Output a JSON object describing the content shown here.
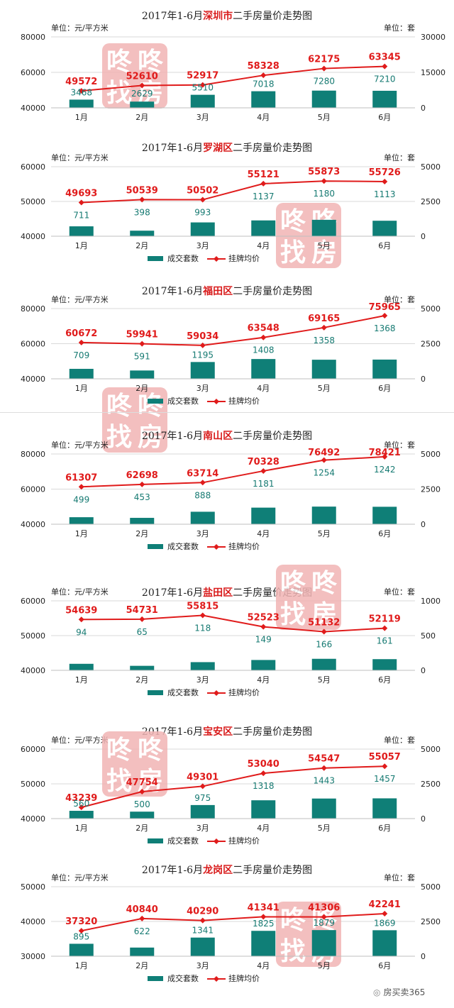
{
  "months": [
    "1月",
    "2月",
    "3月",
    "4月",
    "5月",
    "6月"
  ],
  "left_unit": "单位：元/平方米",
  "right_unit": "单位：套",
  "legend": {
    "bar": "成交套数",
    "line": "挂牌均价"
  },
  "colors": {
    "bar": "#0f7f77",
    "line": "#e01b1b",
    "title_accent": "#d91c1c",
    "watermark": "#f1b5b5",
    "text": "#222222",
    "volume_label": "#167a72"
  },
  "watermark_text": [
    "咚",
    "咚",
    "找",
    "房"
  ],
  "credit": "房买卖365",
  "chart_data": [
    {
      "type": "bar",
      "title_prefix": "2017年1-6月",
      "title_highlight": "深圳市",
      "title_suffix": "二手房量价走势图",
      "categories": [
        "1月",
        "2月",
        "3月",
        "4月",
        "5月",
        "6月"
      ],
      "series": [
        {
          "name": "成交套数",
          "axis": "right",
          "values": [
            3468,
            2629,
            5510,
            7018,
            7280,
            7210
          ]
        },
        {
          "name": "挂牌均价",
          "axis": "left",
          "values": [
            49572,
            52610,
            52917,
            58328,
            62175,
            63345
          ]
        }
      ],
      "left_axis": {
        "min": 40000,
        "max": 80000,
        "ticks": [
          40000,
          60000,
          80000
        ]
      },
      "right_axis": {
        "min": 0,
        "max": 30000,
        "ticks": [
          0,
          15000,
          30000
        ]
      },
      "legend_shown": false
    },
    {
      "type": "bar",
      "title_prefix": "2017年1-6月",
      "title_highlight": "罗湖区",
      "title_suffix": "二手房量价走势图",
      "categories": [
        "1月",
        "2月",
        "3月",
        "4月",
        "5月",
        "6月"
      ],
      "series": [
        {
          "name": "成交套数",
          "axis": "right",
          "values": [
            711,
            398,
            993,
            1137,
            1180,
            1113
          ]
        },
        {
          "name": "挂牌均价",
          "axis": "left",
          "values": [
            49693,
            50539,
            50502,
            55121,
            55873,
            55726
          ]
        }
      ],
      "left_axis": {
        "min": 40000,
        "max": 60000,
        "ticks": [
          40000,
          50000,
          60000
        ]
      },
      "right_axis": {
        "min": 0,
        "max": 5000,
        "ticks": [
          0,
          2500,
          5000
        ]
      },
      "legend_shown": true
    },
    {
      "type": "bar",
      "title_prefix": "2017年1-6月",
      "title_highlight": "福田区",
      "title_suffix": "二手房量价走势图",
      "categories": [
        "1月",
        "2月",
        "3月",
        "4月",
        "5月",
        "6月"
      ],
      "series": [
        {
          "name": "成交套数",
          "axis": "right",
          "values": [
            709,
            591,
            1195,
            1408,
            1358,
            1368
          ]
        },
        {
          "name": "挂牌均价",
          "axis": "left",
          "values": [
            60672,
            59941,
            59034,
            63548,
            69165,
            75965
          ]
        }
      ],
      "left_axis": {
        "min": 40000,
        "max": 80000,
        "ticks": [
          40000,
          60000,
          80000
        ]
      },
      "right_axis": {
        "min": 0,
        "max": 5000,
        "ticks": [
          0,
          2500,
          5000
        ]
      },
      "legend_shown": true
    },
    {
      "type": "bar",
      "title_prefix": "2017年1-6月",
      "title_highlight": "南山区",
      "title_suffix": "二手房量价走势图",
      "categories": [
        "1月",
        "2月",
        "3月",
        "4月",
        "5月",
        "6月"
      ],
      "series": [
        {
          "name": "成交套数",
          "axis": "right",
          "values": [
            499,
            453,
            888,
            1181,
            1254,
            1242
          ]
        },
        {
          "name": "挂牌均价",
          "axis": "left",
          "values": [
            61307,
            62698,
            63714,
            70328,
            76492,
            78421
          ]
        }
      ],
      "left_axis": {
        "min": 40000,
        "max": 80000,
        "ticks": [
          40000,
          60000,
          80000
        ]
      },
      "right_axis": {
        "min": 0,
        "max": 5000,
        "ticks": [
          0,
          2500,
          5000
        ]
      },
      "legend_shown": true
    },
    {
      "type": "bar",
      "title_prefix": "2017年1-6月",
      "title_highlight": "盐田区",
      "title_suffix": "二手房量价走势图",
      "categories": [
        "1月",
        "2月",
        "3月",
        "4月",
        "5月",
        "6月"
      ],
      "series": [
        {
          "name": "成交套数",
          "axis": "right",
          "values": [
            94,
            65,
            118,
            149,
            166,
            161
          ]
        },
        {
          "name": "挂牌均价",
          "axis": "left",
          "values": [
            54639,
            54731,
            55815,
            52523,
            51132,
            52119
          ]
        }
      ],
      "left_axis": {
        "min": 40000,
        "max": 60000,
        "ticks": [
          40000,
          50000,
          60000
        ]
      },
      "right_axis": {
        "min": 0,
        "max": 1000,
        "ticks": [
          0,
          500,
          1000
        ]
      },
      "legend_shown": true
    },
    {
      "type": "bar",
      "title_prefix": "2017年1-6月",
      "title_highlight": "宝安区",
      "title_suffix": "二手房量价走势图",
      "categories": [
        "1月",
        "2月",
        "3月",
        "4月",
        "5月",
        "6月"
      ],
      "series": [
        {
          "name": "成交套数",
          "axis": "right",
          "values": [
            560,
            500,
            975,
            1318,
            1443,
            1457
          ]
        },
        {
          "name": "挂牌均价",
          "axis": "left",
          "values": [
            43239,
            47754,
            49301,
            53040,
            54547,
            55057
          ]
        }
      ],
      "left_axis": {
        "min": 40000,
        "max": 60000,
        "ticks": [
          40000,
          50000,
          60000
        ]
      },
      "right_axis": {
        "min": 0,
        "max": 5000,
        "ticks": [
          0,
          2500,
          5000
        ]
      },
      "legend_shown": true
    },
    {
      "type": "bar",
      "title_prefix": "2017年1-6月",
      "title_highlight": "龙岗区",
      "title_suffix": "二手房量价走势图",
      "categories": [
        "1月",
        "2月",
        "3月",
        "4月",
        "5月",
        "6月"
      ],
      "series": [
        {
          "name": "成交套数",
          "axis": "right",
          "values": [
            895,
            622,
            1341,
            1825,
            1879,
            1869
          ]
        },
        {
          "name": "挂牌均价",
          "axis": "left",
          "values": [
            37320,
            40840,
            40290,
            41341,
            41306,
            42241
          ]
        }
      ],
      "left_axis": {
        "min": 30000,
        "max": 50000,
        "ticks": [
          30000,
          40000,
          50000
        ]
      },
      "right_axis": {
        "min": 0,
        "max": 5000,
        "ticks": [
          0,
          2500,
          5000
        ]
      },
      "legend_shown": true
    }
  ]
}
